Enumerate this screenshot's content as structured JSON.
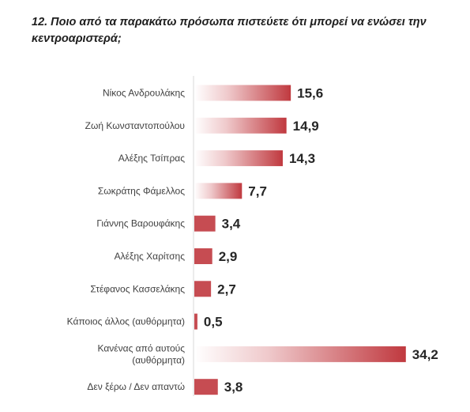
{
  "question": "12. Ποιο από τα παρακάτω πρόσωπα πιστεύετε ότι μπορεί να ενώσει την κεντροαριστερά;",
  "colors": {
    "bar_start": "#ffffff",
    "bar_end": "#c0393f",
    "bar_solid": "#c0393f"
  },
  "chart_data": {
    "type": "bar",
    "orientation": "horizontal",
    "title": "12. Ποιο από τα παρακάτω πρόσωπα πιστεύετε ότι μπορεί να ενώσει την κεντροαριστερά;",
    "categories": [
      [
        "Νίκος Ανδρουλάκης"
      ],
      [
        "Ζωή Κωνσταντοπούλου"
      ],
      [
        "Αλέξης Τσίπρας"
      ],
      [
        "Σωκράτης Φάμελλος"
      ],
      [
        "Γιάννης Βαρουφάκης"
      ],
      [
        "Αλέξης Χαρίτσης"
      ],
      [
        "Στέφανος Κασσελάκης"
      ],
      [
        "Κάποιος άλλος (αυθόρμητα)"
      ],
      [
        "Κανένας από αυτούς",
        "(αυθόρμητα)"
      ],
      [
        "Δεν ξέρω / Δεν απαντώ"
      ]
    ],
    "values": [
      15.6,
      14.9,
      14.3,
      7.7,
      3.4,
      2.9,
      2.7,
      0.5,
      34.2,
      3.8
    ],
    "value_labels": [
      "15,6",
      "14,9",
      "14,3",
      "7,7",
      "3,4",
      "2,9",
      "2,7",
      "0,5",
      "34,2",
      "3,8"
    ],
    "xlim": [
      0,
      40
    ],
    "grid": false,
    "legend": "none"
  }
}
